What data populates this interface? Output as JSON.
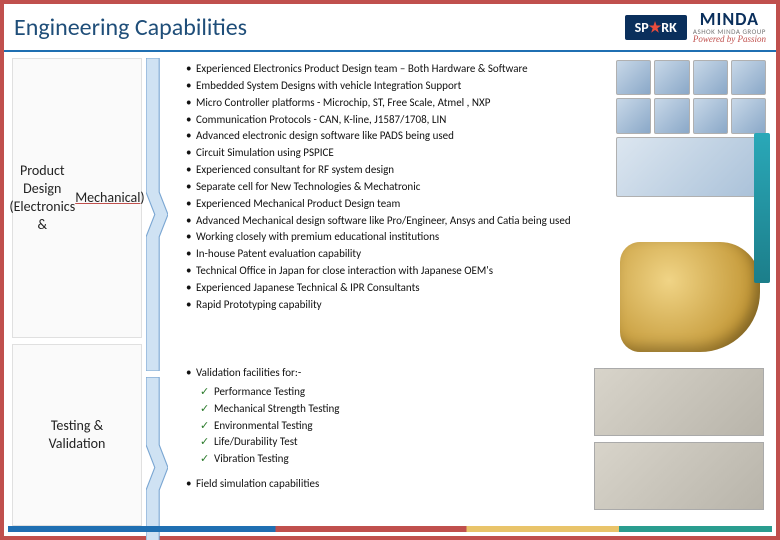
{
  "colors": {
    "title": "#1f4e79",
    "header_rule": "#1f6fb2",
    "accent_red": "#c0504d",
    "accent_teal": "#2aa8b8",
    "check_green": "#2a7a2a"
  },
  "typography": {
    "title_fontsize": 24,
    "body_fontsize": 11,
    "section_label_fontsize": 14
  },
  "header": {
    "title": "Engineering Capabilities",
    "logo": {
      "spark_text": "SP★RK",
      "minda_text": "MINDA",
      "group_text": "ASHOK MINDA GROUP",
      "tagline": "Powered by Passion"
    }
  },
  "sections": {
    "product_design": {
      "label_html": "Product<br>Design<br>(Electronics &<br><span class='red-underline'>Mechanical</span>)",
      "bullets": [
        "Experienced Electronics Product Design team – Both Hardware & Software",
        "Embedded System Designs with vehicle Integration Support",
        "Micro Controller platforms - Microchip, ST, Free Scale, Atmel , NXP",
        "Communication Protocols - CAN, K-line, J1587/1708, LIN",
        "Advanced electronic design software like PADS being used",
        "Circuit Simulation using PSPICE",
        "Experienced consultant for RF system design",
        "Separate cell for New Technologies & Mechatronic",
        "Experienced Mechanical Product Design team",
        "Advanced Mechanical design software like Pro/Engineer, Ansys and Catia being used",
        "Working closely with premium educational institutions",
        "In-house Patent evaluation capability",
        "Technical Office in Japan for close interaction with Japanese OEM's",
        "Experienced Japanese Technical & IPR Consultants",
        "Rapid Prototyping capability"
      ]
    },
    "testing_validation": {
      "label_html": "Testing &<br>Validation",
      "lead_bullet": "Validation facilities for:-",
      "sub_bullets": [
        "Performance Testing",
        "Mechanical Strength Testing",
        "Environmental Testing",
        "Life/Durability Test",
        "Vibration Testing"
      ],
      "trailing_bullet": "Field simulation capabilities"
    }
  }
}
